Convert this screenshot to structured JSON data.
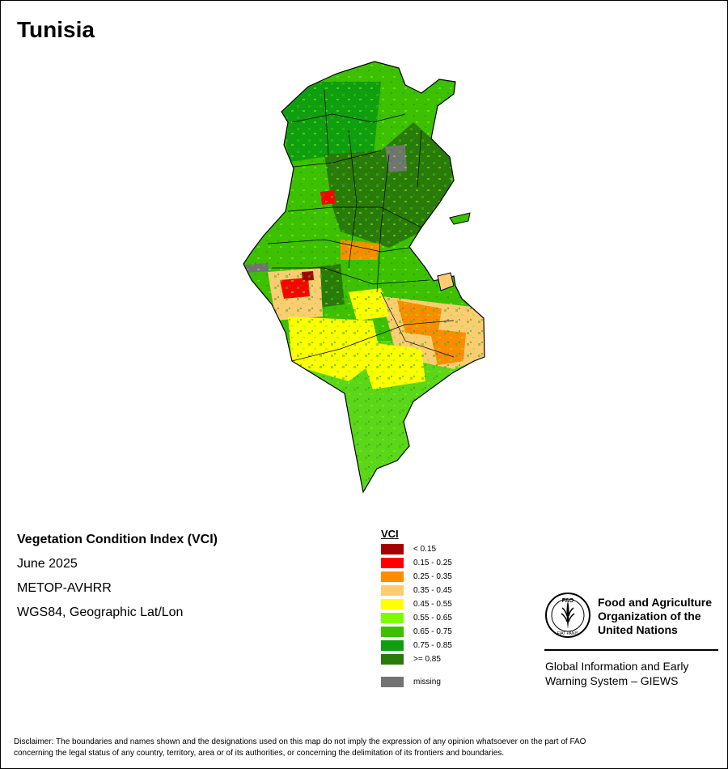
{
  "title": "Tunisia",
  "info": {
    "index_name": "Vegetation Condition Index (VCI)",
    "date": "June 2025",
    "sensor": "METOP-AVHRR",
    "projection": "WGS84, Geographic Lat/Lon"
  },
  "legend": {
    "title": "VCI",
    "classes": [
      {
        "label": "< 0.15",
        "color": "#a50000"
      },
      {
        "label": "0.15 - 0.25",
        "color": "#ff0000"
      },
      {
        "label": "0.25 - 0.35",
        "color": "#ff8c00"
      },
      {
        "label": "0.35 - 0.45",
        "color": "#ffcc73"
      },
      {
        "label": "0.45 - 0.55",
        "color": "#ffff00"
      },
      {
        "label": "0.55 - 0.65",
        "color": "#7cfc00"
      },
      {
        "label": "0.65 - 0.75",
        "color": "#3cc000"
      },
      {
        "label": "0.75 - 0.85",
        "color": "#0f9e0f"
      },
      {
        "label": ">= 0.85",
        "color": "#2a7a0a"
      }
    ],
    "missing": {
      "label": "missing",
      "color": "#737373"
    }
  },
  "org": {
    "name_lines": [
      "Food and Agriculture",
      "Organization of the",
      "United Nations"
    ],
    "system_lines": [
      "Global Information and Early",
      "Warning System – GIEWS"
    ],
    "logo_text": "FAO",
    "logo_motto": "FIAT PANIS"
  },
  "disclaimer": [
    "Disclaimer: The boundaries and names shown and the designations used on this map do not imply the expression of any opinion whatsoever on the part of FAO",
    "concerning the legal status of any country, territory, area or of its authorities, or concerning the delimitation of its frontiers and boundaries."
  ]
}
